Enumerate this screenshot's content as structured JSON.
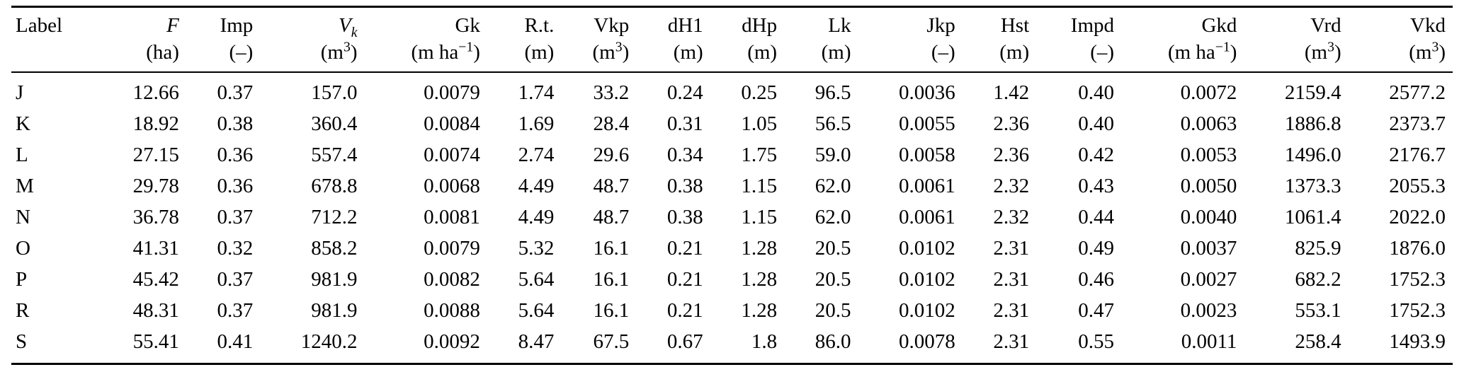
{
  "table": {
    "columns": [
      {
        "name": "Label",
        "italic": false,
        "sub": "",
        "unit_pre": "",
        "sup": "",
        "unit_suf": ""
      },
      {
        "name": "F",
        "italic": true,
        "sub": "",
        "unit_pre": "(ha)",
        "sup": "",
        "unit_suf": ""
      },
      {
        "name": "Imp",
        "italic": false,
        "sub": "",
        "unit_pre": "(–)",
        "sup": "",
        "unit_suf": ""
      },
      {
        "name": "V",
        "italic": true,
        "sub": "k",
        "unit_pre": "(m",
        "sup": "3",
        "unit_suf": ")"
      },
      {
        "name": "Gk",
        "italic": false,
        "sub": "",
        "unit_pre": "(m ha",
        "sup": "−1",
        "unit_suf": ")"
      },
      {
        "name": "R.t.",
        "italic": false,
        "sub": "",
        "unit_pre": "(m)",
        "sup": "",
        "unit_suf": ""
      },
      {
        "name": "Vkp",
        "italic": false,
        "sub": "",
        "unit_pre": "(m",
        "sup": "3",
        "unit_suf": ")"
      },
      {
        "name": "dH1",
        "italic": false,
        "sub": "",
        "unit_pre": "(m)",
        "sup": "",
        "unit_suf": ""
      },
      {
        "name": "dHp",
        "italic": false,
        "sub": "",
        "unit_pre": "(m)",
        "sup": "",
        "unit_suf": ""
      },
      {
        "name": "Lk",
        "italic": false,
        "sub": "",
        "unit_pre": "(m)",
        "sup": "",
        "unit_suf": ""
      },
      {
        "name": "Jkp",
        "italic": false,
        "sub": "",
        "unit_pre": "(–)",
        "sup": "",
        "unit_suf": ""
      },
      {
        "name": "Hst",
        "italic": false,
        "sub": "",
        "unit_pre": "(m)",
        "sup": "",
        "unit_suf": ""
      },
      {
        "name": "Impd",
        "italic": false,
        "sub": "",
        "unit_pre": "(–)",
        "sup": "",
        "unit_suf": ""
      },
      {
        "name": "Gkd",
        "italic": false,
        "sub": "",
        "unit_pre": "(m ha",
        "sup": "−1",
        "unit_suf": ")"
      },
      {
        "name": "Vrd",
        "italic": false,
        "sub": "",
        "unit_pre": "(m",
        "sup": "3",
        "unit_suf": ")"
      },
      {
        "name": "Vkd",
        "italic": false,
        "sub": "",
        "unit_pre": "(m",
        "sup": "3",
        "unit_suf": ")"
      }
    ],
    "rows": [
      [
        "J",
        "12.66",
        "0.37",
        "157.0",
        "0.0079",
        "1.74",
        "33.2",
        "0.24",
        "0.25",
        "96.5",
        "0.0036",
        "1.42",
        "0.40",
        "0.0072",
        "2159.4",
        "2577.2"
      ],
      [
        "K",
        "18.92",
        "0.38",
        "360.4",
        "0.0084",
        "1.69",
        "28.4",
        "0.31",
        "1.05",
        "56.5",
        "0.0055",
        "2.36",
        "0.40",
        "0.0063",
        "1886.8",
        "2373.7"
      ],
      [
        "L",
        "27.15",
        "0.36",
        "557.4",
        "0.0074",
        "2.74",
        "29.6",
        "0.34",
        "1.75",
        "59.0",
        "0.0058",
        "2.36",
        "0.42",
        "0.0053",
        "1496.0",
        "2176.7"
      ],
      [
        "M",
        "29.78",
        "0.36",
        "678.8",
        "0.0068",
        "4.49",
        "48.7",
        "0.38",
        "1.15",
        "62.0",
        "0.0061",
        "2.32",
        "0.43",
        "0.0050",
        "1373.3",
        "2055.3"
      ],
      [
        "N",
        "36.78",
        "0.37",
        "712.2",
        "0.0081",
        "4.49",
        "48.7",
        "0.38",
        "1.15",
        "62.0",
        "0.0061",
        "2.32",
        "0.44",
        "0.0040",
        "1061.4",
        "2022.0"
      ],
      [
        "O",
        "41.31",
        "0.32",
        "858.2",
        "0.0079",
        "5.32",
        "16.1",
        "0.21",
        "1.28",
        "20.5",
        "0.0102",
        "2.31",
        "0.49",
        "0.0037",
        "825.9",
        "1876.0"
      ],
      [
        "P",
        "45.42",
        "0.37",
        "981.9",
        "0.0082",
        "5.64",
        "16.1",
        "0.21",
        "1.28",
        "20.5",
        "0.0102",
        "2.31",
        "0.46",
        "0.0027",
        "682.2",
        "1752.3"
      ],
      [
        "R",
        "48.31",
        "0.37",
        "981.9",
        "0.0088",
        "5.64",
        "16.1",
        "0.21",
        "1.28",
        "20.5",
        "0.0102",
        "2.31",
        "0.47",
        "0.0023",
        "553.1",
        "1752.3"
      ],
      [
        "S",
        "55.41",
        "0.41",
        "1240.2",
        "0.0092",
        "8.47",
        "67.5",
        "0.67",
        "1.8",
        "86.0",
        "0.0078",
        "2.31",
        "0.55",
        "0.0011",
        "258.4",
        "1493.9"
      ]
    ]
  }
}
